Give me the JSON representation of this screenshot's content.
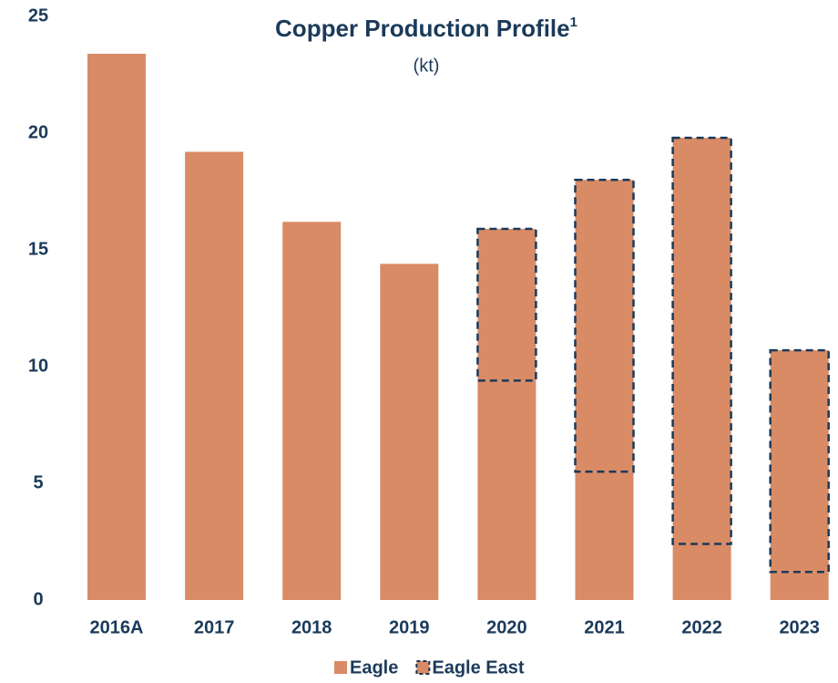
{
  "chart_data": {
    "type": "stacked_bar",
    "title": "Copper Production Profile",
    "title_superscript": "1",
    "subtitle": "(kt)",
    "categories": [
      "2016A",
      "2017",
      "2018",
      "2019",
      "2020",
      "2021",
      "2022",
      "2023"
    ],
    "series": [
      {
        "name": "Eagle",
        "color": "#d98b66",
        "values": [
          23.4,
          19.2,
          16.2,
          14.4,
          9.4,
          5.5,
          2.4,
          1.2
        ]
      },
      {
        "name": "Eagle East",
        "color": "#d98b66",
        "outline": "#1b3a5a",
        "values": [
          null,
          null,
          null,
          null,
          6.5,
          12.5,
          17.4,
          9.5
        ]
      }
    ],
    "ylim": [
      0,
      25
    ],
    "yticks": [
      0,
      5,
      10,
      15,
      20,
      25
    ],
    "grid": false,
    "legend": "bottom"
  }
}
